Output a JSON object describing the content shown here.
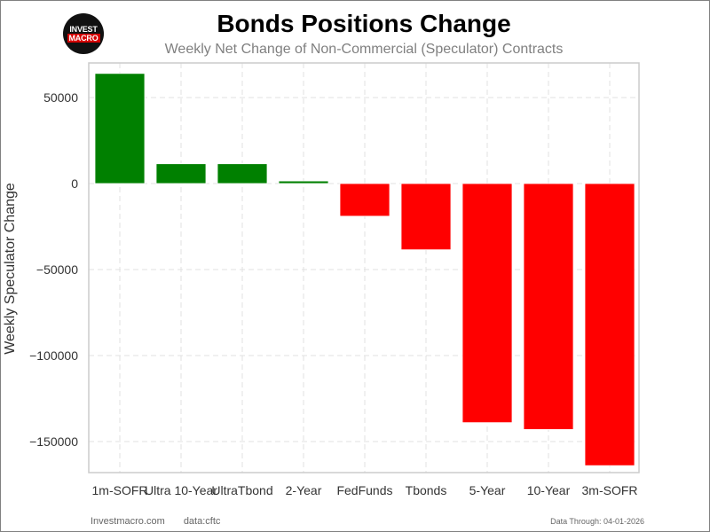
{
  "header": {
    "logo_line1": "INVEST",
    "logo_line2": "MACRO",
    "title": "Bonds Positions Change",
    "subtitle": "Weekly Net Change of Non-Commercial (Speculator) Contracts"
  },
  "footer": {
    "site": "Investmacro.com",
    "source": "data:cftc",
    "data_through": "Data Through: 04-01-2026"
  },
  "colors": {
    "positive": "#008000",
    "negative": "#ff0000",
    "grid": "#e0e0e0",
    "axes": "#cccccc"
  },
  "chart_data": {
    "type": "bar",
    "title": "Bonds Positions Change",
    "subtitle": "Weekly Net Change of Non-Commercial (Speculator) Contracts",
    "xlabel": "",
    "ylabel": "Weekly Speculator Change",
    "categories": [
      "1m-SOFR",
      "Ultra 10-Year",
      "UltraTbond",
      "2-Year",
      "FedFunds",
      "Tbonds",
      "5-Year",
      "10-Year",
      "3m-SOFR"
    ],
    "values": [
      64000,
      11500,
      11500,
      1500,
      -19000,
      -38500,
      -139000,
      -143000,
      -164000
    ],
    "yticks": [
      50000,
      0,
      -50000,
      -100000,
      -150000
    ],
    "ytick_labels": [
      "50000",
      "0",
      "−50000",
      "−100000",
      "−150000"
    ],
    "ylim": [
      -168000,
      70000
    ],
    "grid": true,
    "legend": null
  }
}
